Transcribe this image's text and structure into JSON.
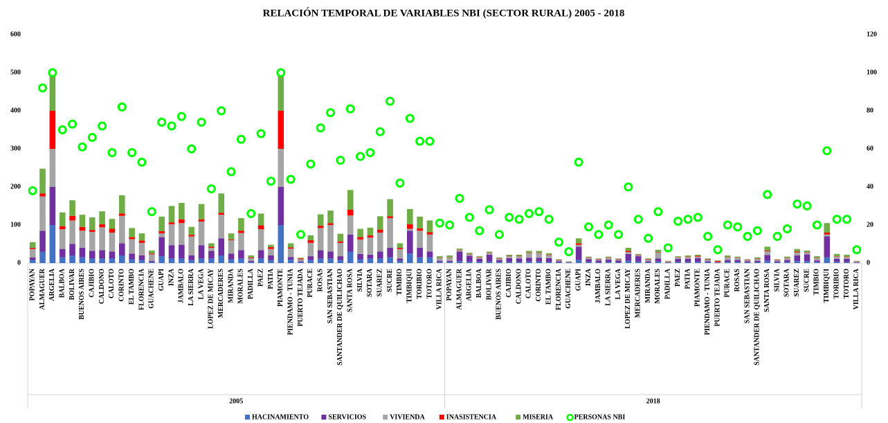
{
  "chart_data": {
    "type": "bar",
    "stacked": true,
    "title": "RELACIÓN TEMPORAL DE VARIABLES NBI (SECTOR RURAL) 2005 - 2018",
    "groups": [
      "2005",
      "2018"
    ],
    "categories": [
      "POPAYAN",
      "ALMAGUER",
      "ARGELIA",
      "BALBOA",
      "BOLIVAR",
      "BUENOS AIRES",
      "CAJIBIO",
      "CALDONO",
      "CALOTO",
      "CORINTO",
      "EL TAMBO",
      "FLORENCIA",
      "GUACHENE",
      "GUAPI",
      "INZA",
      "JAMBALO",
      "LA SIERRA",
      "LA VEGA",
      "LOPEZ DE MICAY",
      "MERCADERES",
      "MIRANDA",
      "MORALES",
      "PADILLA",
      "PAEZ",
      "PATIA",
      "PIAMONTE",
      "PIENDAMO - TUNIA",
      "PUERTO TEJADA",
      "PURACE",
      "ROSAS",
      "SAN SEBASTIAN",
      "SANTANDER DE QUILICHAO",
      "SANTA ROSA",
      "SILVIA",
      "SOTARA",
      "SUAREZ",
      "SUCRE",
      "TIMBIO",
      "TIMBIQUI",
      "TORIBIO",
      "TOTORO",
      "VILLA RICA",
      "POPAYAN",
      "ALMAGUER",
      "ARGELIA",
      "BALBOA",
      "BOLIVAR",
      "BUENOS AIRES",
      "CAJIBIO",
      "CALDONO",
      "CALOTO",
      "CORINTO",
      "EL TAMBO",
      "FLORENCIA",
      "GUACHENE",
      "GUAPI",
      "INZA",
      "JAMBALO",
      "LA SIERRA",
      "LA VEGA",
      "LOPEZ DE MICAY",
      "MERCADERES",
      "MIRANDA",
      "MORALES",
      "PADILLA",
      "PAEZ",
      "PATIA",
      "PIAMONTE",
      "PIENDAMO - TUNIA",
      "PUERTO TEJADA",
      "PURACE",
      "ROSAS",
      "SAN SEBASTIAN",
      "SANTANDER DE QUILICHAO",
      "SANTA ROSA",
      "SILVIA",
      "SOTARA",
      "SUAREZ",
      "SUCRE",
      "TIMBIO",
      "TIMBIQUI",
      "TORIBIO",
      "TOTORO",
      "VILLA RICA"
    ],
    "series": [
      {
        "name": "HACINAMIENTO",
        "color": "#4472c4",
        "values": [
          8,
          30,
          100,
          15,
          20,
          15,
          12,
          12,
          12,
          20,
          10,
          8,
          3,
          18,
          12,
          12,
          8,
          12,
          12,
          20,
          10,
          12,
          3,
          12,
          8,
          100,
          10,
          3,
          8,
          12,
          12,
          8,
          30,
          10,
          12,
          12,
          15,
          6,
          25,
          15,
          15,
          3,
          3,
          5,
          4,
          3,
          4,
          3,
          3,
          3,
          4,
          4,
          3,
          2,
          1,
          8,
          3,
          2,
          3,
          2,
          6,
          4,
          2,
          4,
          1,
          3,
          3,
          3,
          2,
          1,
          3,
          3,
          2,
          2,
          6,
          2,
          3,
          5,
          5,
          3,
          15,
          3,
          3,
          1
        ]
      },
      {
        "name": "SERVICIOS",
        "color": "#7030a0",
        "values": [
          7,
          55,
          100,
          22,
          30,
          25,
          20,
          22,
          18,
          32,
          15,
          12,
          3,
          50,
          35,
          36,
          12,
          35,
          20,
          45,
          15,
          22,
          3,
          22,
          12,
          100,
          6,
          2,
          10,
          22,
          18,
          10,
          45,
          14,
          10,
          18,
          25,
          6,
          60,
          25,
          15,
          3,
          3,
          25,
          15,
          8,
          18,
          5,
          10,
          9,
          10,
          10,
          10,
          3,
          1,
          35,
          7,
          5,
          6,
          5,
          18,
          14,
          3,
          8,
          1,
          8,
          8,
          10,
          3,
          1,
          5,
          5,
          3,
          4,
          15,
          3,
          5,
          15,
          18,
          4,
          55,
          8,
          8,
          1
        ]
      },
      {
        "name": "VIVIENDA",
        "color": "#a5a5a5",
        "values": [
          22,
          90,
          100,
          52,
          62,
          45,
          50,
          60,
          50,
          72,
          38,
          33,
          17,
          10,
          55,
          57,
          50,
          62,
          8,
          62,
          35,
          45,
          7,
          55,
          17,
          100,
          22,
          5,
          35,
          58,
          70,
          35,
          50,
          38,
          45,
          50,
          78,
          25,
          5,
          45,
          45,
          7,
          8,
          4,
          4,
          4,
          4,
          4,
          5,
          6,
          12,
          12,
          8,
          3,
          2,
          5,
          4,
          3,
          5,
          3,
          5,
          3,
          4,
          16,
          2,
          4,
          5,
          4,
          4,
          1,
          7,
          6,
          3,
          5,
          10,
          3,
          5,
          8,
          5,
          6,
          5,
          6,
          5,
          2
        ]
      },
      {
        "name": "INASISTENCIA",
        "color": "#ff0000",
        "values": [
          3,
          8,
          100,
          8,
          12,
          10,
          5,
          8,
          10,
          6,
          5,
          6,
          2,
          6,
          5,
          10,
          4,
          6,
          3,
          5,
          2,
          6,
          2,
          10,
          5,
          100,
          3,
          2,
          7,
          6,
          5,
          4,
          15,
          6,
          6,
          8,
          5,
          3,
          12,
          6,
          6,
          1,
          1,
          1,
          1,
          1,
          1,
          1,
          1,
          1,
          1,
          1,
          1,
          1,
          0,
          4,
          1,
          1,
          1,
          1,
          3,
          1,
          1,
          1,
          1,
          1,
          1,
          2,
          1,
          3,
          1,
          1,
          1,
          1,
          2,
          1,
          1,
          2,
          1,
          1,
          5,
          1,
          1,
          1
        ]
      },
      {
        "name": "MISERIA",
        "color": "#70ad47",
        "values": [
          15,
          65,
          100,
          36,
          41,
          32,
          33,
          34,
          26,
          48,
          24,
          19,
          8,
          38,
          43,
          43,
          21,
          40,
          9,
          51,
          16,
          33,
          5,
          31,
          6,
          100,
          11,
          2,
          13,
          30,
          33,
          20,
          52,
          22,
          20,
          35,
          45,
          12,
          40,
          31,
          31,
          4,
          5,
          3,
          3,
          2,
          3,
          2,
          3,
          3,
          5,
          5,
          4,
          1,
          1,
          13,
          2,
          1,
          2,
          1,
          8,
          2,
          2,
          6,
          1,
          2,
          3,
          3,
          2,
          1,
          4,
          2,
          1,
          3,
          10,
          1,
          3,
          7,
          4,
          4,
          25,
          6,
          5,
          1
        ]
      },
      {
        "name": "PERSONAS NBI",
        "color": "#00ff00",
        "type": "scatter",
        "axis": "y2",
        "values": [
          38,
          92,
          100,
          70,
          73,
          61,
          66,
          72,
          58,
          82,
          58,
          53,
          27,
          74,
          72,
          77,
          60,
          74,
          39,
          80,
          48,
          65,
          26,
          68,
          43,
          100,
          44,
          15,
          52,
          71,
          79,
          54,
          81,
          56,
          58,
          69,
          85,
          42,
          76,
          64,
          64,
          21,
          20,
          34,
          24,
          17,
          28,
          15,
          24,
          23,
          26,
          27,
          23,
          11,
          6,
          53,
          19,
          15,
          20,
          15,
          40,
          23,
          13,
          27,
          8,
          22,
          23,
          24,
          14,
          7,
          20,
          19,
          14,
          17,
          36,
          14,
          18,
          31,
          30,
          20,
          59,
          23,
          23,
          7
        ]
      }
    ],
    "ylim": [
      0,
      600
    ],
    "yticks": [
      0,
      100,
      200,
      300,
      400,
      500,
      600
    ],
    "y2lim": [
      0,
      120
    ],
    "y2ticks": [
      0,
      20,
      40,
      60,
      80,
      100,
      120
    ],
    "legend": "bottom"
  }
}
